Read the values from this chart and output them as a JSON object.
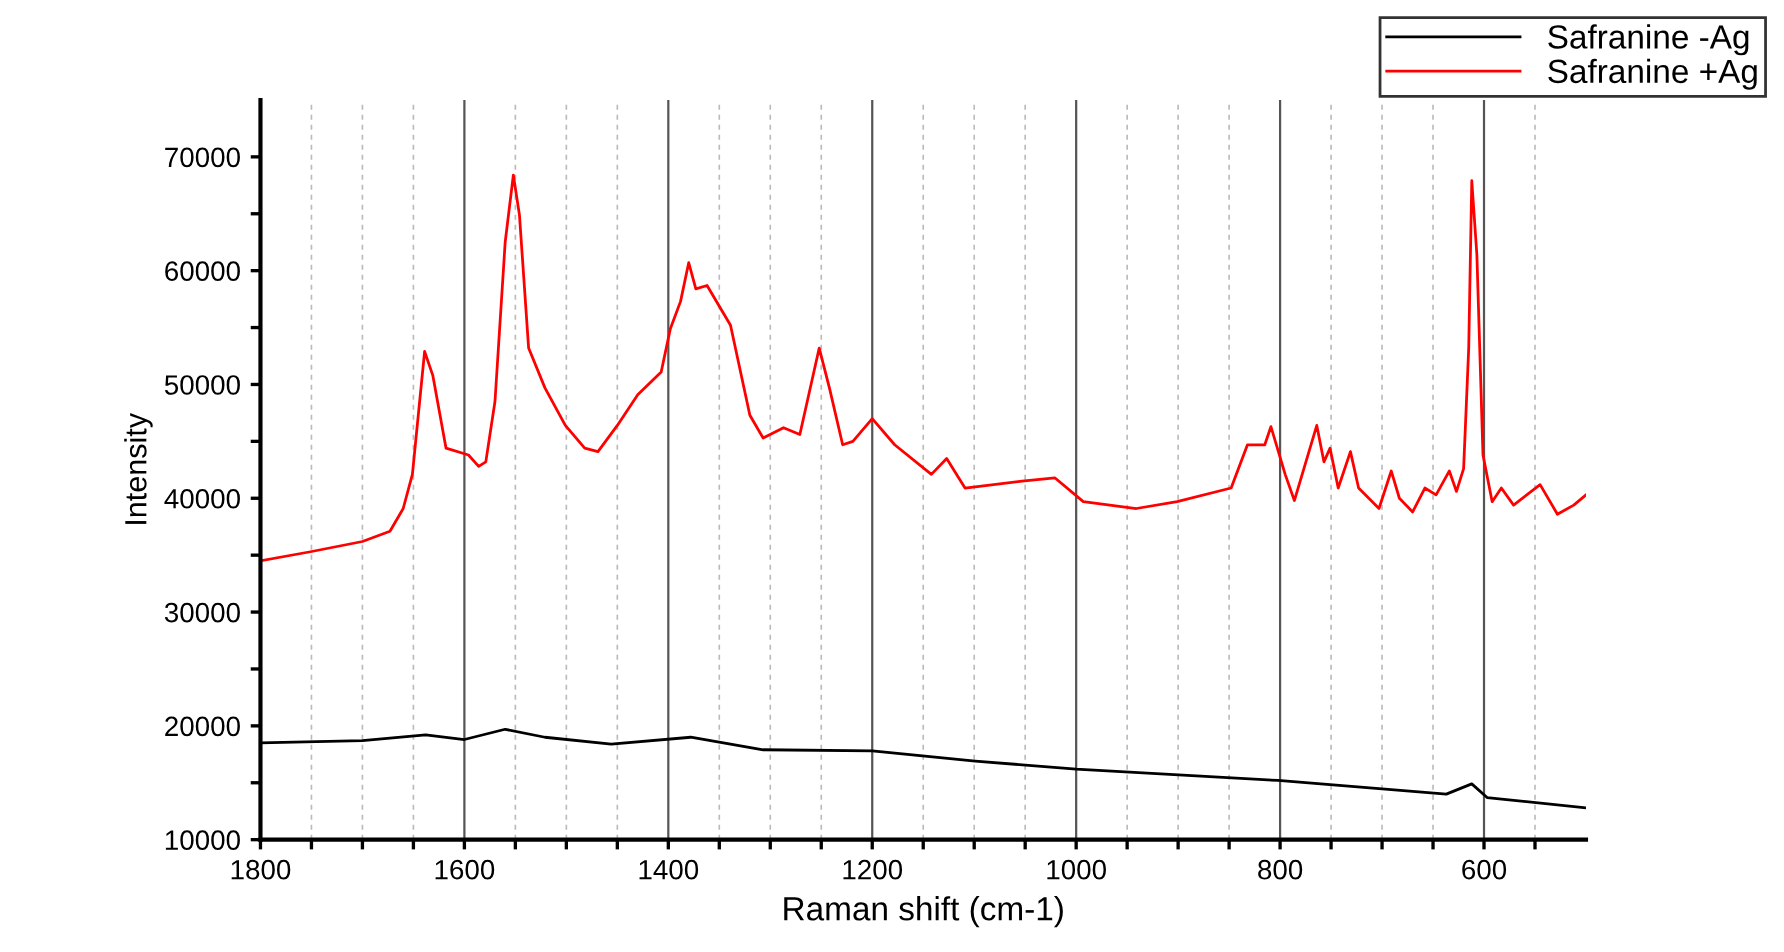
{
  "chart_data": {
    "type": "line",
    "xlabel": "Raman shift (cm-1)",
    "ylabel": "Intensity",
    "xlim": [
      1800,
      500
    ],
    "ylim": [
      10000,
      75000
    ],
    "xticks": [
      1800,
      {
        "value": 1750,
        "label": null
      },
      {
        "value": 1700,
        "label": null
      },
      {
        "value": 1650,
        "label": null
      },
      1600,
      {
        "value": 1550,
        "label": null
      },
      {
        "value": 1500,
        "label": null
      },
      {
        "value": 1450,
        "label": null
      },
      1400,
      {
        "value": 1350,
        "label": null
      },
      {
        "value": 1300,
        "label": null
      },
      {
        "value": 1250,
        "label": null
      },
      1200,
      {
        "value": 1150,
        "label": null
      },
      {
        "value": 1100,
        "label": null
      },
      {
        "value": 1050,
        "label": null
      },
      1000,
      {
        "value": 950,
        "label": null
      },
      {
        "value": 900,
        "label": null
      },
      {
        "value": 850,
        "label": null
      },
      800,
      {
        "value": 750,
        "label": null
      },
      {
        "value": 700,
        "label": null
      },
      {
        "value": 650,
        "label": null
      },
      600,
      {
        "value": 550,
        "label": null
      }
    ],
    "yticks": [
      10000,
      {
        "value": 15000,
        "label": null
      },
      20000,
      {
        "value": 25000,
        "label": null
      },
      30000,
      {
        "value": 35000,
        "label": null
      },
      40000,
      {
        "value": 45000,
        "label": null
      },
      50000,
      {
        "value": 55000,
        "label": null
      },
      60000,
      {
        "value": 65000,
        "label": null
      },
      70000
    ],
    "grid": "x",
    "legend": "top right",
    "line_style": "solid",
    "marker": "none",
    "series": [
      {
        "name": "Safranine -Ag",
        "color": "#000000",
        "x": [
          1800,
          1700,
          1638,
          1600,
          1560,
          1521,
          1456,
          1378,
          1307,
          1200,
          1099,
          1000,
          802,
          637,
          612,
          597,
          500
        ],
        "values": [
          18500,
          18700,
          19200,
          18800,
          19700,
          19000,
          18400,
          19000,
          17900,
          17800,
          16900,
          16200,
          15200,
          14000,
          14900,
          13700,
          12800
        ]
      },
      {
        "name": "Safranine +Ag",
        "color": "#ff0000",
        "x": [
          1800,
          1751,
          1700,
          1673,
          1660,
          1651,
          1639,
          1631,
          1618,
          1596,
          1586,
          1579,
          1570,
          1560,
          1552,
          1546,
          1537,
          1521,
          1501,
          1482,
          1469,
          1450,
          1430,
          1407,
          1398,
          1388,
          1380,
          1373,
          1362,
          1339,
          1320,
          1307,
          1287,
          1271,
          1252,
          1242,
          1229,
          1219,
          1200,
          1178,
          1142,
          1127,
          1109,
          1053,
          1021,
          993,
          941,
          901,
          848,
          832,
          815,
          809,
          795,
          786,
          764,
          757,
          751,
          743,
          731,
          723,
          703,
          691,
          683,
          670,
          658,
          647,
          634,
          627,
          620,
          615,
          612,
          607,
          601,
          592,
          583,
          571,
          545,
          528,
          512,
          500
        ],
        "values": [
          34500,
          35300,
          36200,
          37100,
          39100,
          42100,
          52900,
          50800,
          44400,
          43800,
          42800,
          43200,
          48500,
          62500,
          68400,
          64900,
          53200,
          49700,
          46400,
          44400,
          44100,
          46400,
          49100,
          51100,
          54900,
          57300,
          60700,
          58400,
          58700,
          55200,
          47300,
          45300,
          46200,
          45600,
          53200,
          49700,
          44700,
          45000,
          47000,
          44700,
          42100,
          43500,
          40900,
          41500,
          41800,
          39700,
          39100,
          39700,
          40900,
          44700,
          44700,
          46300,
          42100,
          39800,
          46400,
          43200,
          44400,
          40900,
          44100,
          40900,
          39100,
          42400,
          40000,
          38800,
          40900,
          40300,
          42400,
          40600,
          42600,
          53200,
          67900,
          61400,
          43800,
          39700,
          40900,
          39400,
          41200,
          38600,
          39400,
          40300
        ]
      }
    ]
  }
}
